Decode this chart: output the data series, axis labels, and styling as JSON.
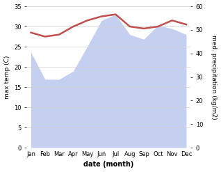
{
  "months": [
    "Jan",
    "Feb",
    "Mar",
    "Apr",
    "May",
    "Jun",
    "Jul",
    "Aug",
    "Sep",
    "Oct",
    "Nov",
    "Dec"
  ],
  "max_temp": [
    28.5,
    27.5,
    28.0,
    30.0,
    31.5,
    32.5,
    33.0,
    30.0,
    29.5,
    30.0,
    31.5,
    30.5
  ],
  "precipitation": [
    40.5,
    29.0,
    29.0,
    32.5,
    43.0,
    54.0,
    56.5,
    48.0,
    46.0,
    52.0,
    50.5,
    48.0
  ],
  "temp_color": "#c0504d",
  "precip_fill_color": "#c5cff0",
  "temp_ylim": [
    0,
    35
  ],
  "precip_ylim": [
    0,
    60
  ],
  "temp_yticks": [
    0,
    5,
    10,
    15,
    20,
    25,
    30,
    35
  ],
  "precip_yticks": [
    0,
    10,
    20,
    30,
    40,
    50,
    60
  ],
  "xlabel": "date (month)",
  "ylabel_left": "max temp (C)",
  "ylabel_right": "med. precipitation (kg/m2)"
}
